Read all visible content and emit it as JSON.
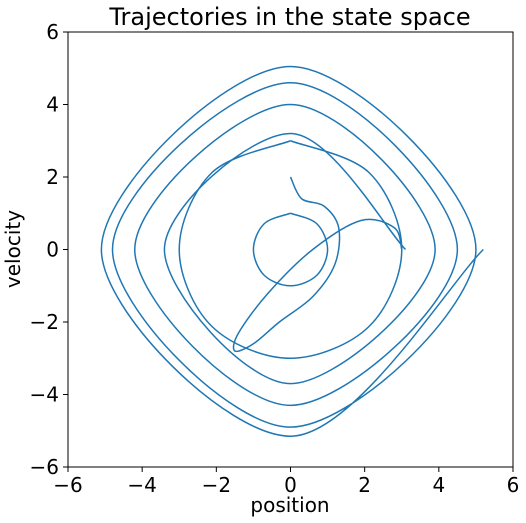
{
  "chart_data": {
    "type": "line",
    "title": "Trajectories in the state space",
    "xlabel": "position",
    "ylabel": "velocity",
    "xlim": [
      -6,
      6
    ],
    "ylim": [
      -6,
      6
    ],
    "xticks": [
      -6,
      -4,
      -2,
      0,
      2,
      4,
      6
    ],
    "yticks": [
      -6,
      -4,
      -2,
      0,
      2,
      4,
      6
    ],
    "xtick_labels": [
      "−6",
      "−4",
      "−2",
      "0",
      "2",
      "4",
      "6"
    ],
    "ytick_labels": [
      "−6",
      "−4",
      "−2",
      "0",
      "2",
      "4",
      "6"
    ],
    "grid": false,
    "series_color": "#1f77b4",
    "series": [
      {
        "description": "orbit around limit cycle of radius ~1",
        "x": [
          0.0,
          0.71,
          1.0,
          0.71,
          0.0,
          -0.71,
          -1.0,
          -0.71,
          0.0
        ],
        "y": [
          1.0,
          0.71,
          0.0,
          -0.71,
          -1.0,
          -0.71,
          0.0,
          0.71,
          1.0
        ]
      },
      {
        "description": "orbit near radius ~3",
        "x": [
          0.0,
          2.12,
          3.0,
          2.12,
          0.0,
          -2.12,
          -3.0,
          -2.12,
          0.0
        ],
        "y": [
          3.0,
          2.12,
          0.0,
          -2.12,
          -3.0,
          -2.12,
          0.0,
          2.12,
          3.0
        ]
      },
      {
        "description": "trajectory from (0, 2) spiraling between cycles",
        "x": [
          0.0,
          0.3,
          0.9,
          1.3,
          1.2,
          0.6,
          -0.3,
          -1.0,
          -1.5,
          -1.4,
          -0.6,
          0.6,
          1.9,
          2.8,
          3.0
        ],
        "y": [
          2.0,
          1.4,
          1.2,
          0.6,
          -0.4,
          -1.3,
          -2.0,
          -2.6,
          -2.8,
          -2.3,
          -1.2,
          0.0,
          0.8,
          0.6,
          0.0
        ]
      },
      {
        "description": "outer spiral expanding from radius ~3 to ~5.2",
        "x": [
          3.1,
          0.0,
          -3.4,
          0.0,
          3.9,
          0.0,
          -4.2,
          0.0,
          4.5,
          0.0,
          -4.8,
          0.0,
          5.0,
          0.0,
          -5.1,
          0.0,
          5.2
        ],
        "y": [
          0.0,
          3.2,
          0.0,
          -3.7,
          0.0,
          4.0,
          0.0,
          -4.3,
          0.0,
          4.6,
          0.0,
          -4.9,
          0.0,
          5.05,
          0.0,
          -5.15,
          0.0
        ]
      }
    ]
  }
}
